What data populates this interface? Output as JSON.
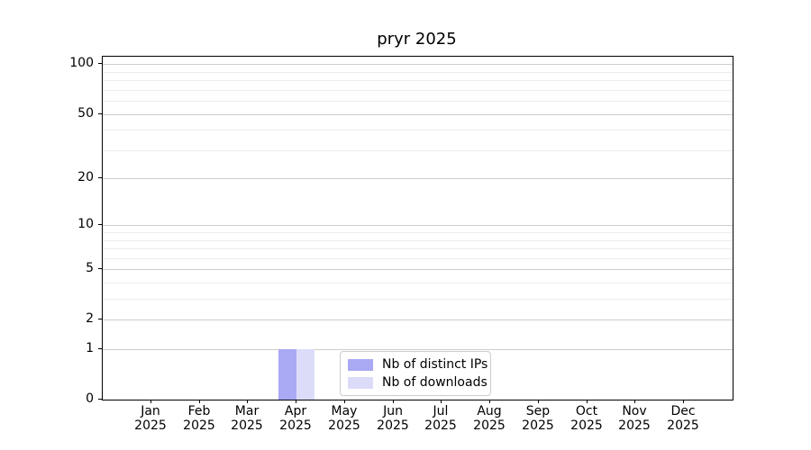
{
  "chart_data": {
    "type": "bar",
    "title": "pryr 2025",
    "categories": [
      "Jan",
      "Feb",
      "Mar",
      "Apr",
      "May",
      "Jun",
      "Jul",
      "Aug",
      "Sep",
      "Oct",
      "Nov",
      "Dec"
    ],
    "x_tick_year": "2025",
    "series": [
      {
        "name": "Nb of distinct IPs",
        "color": "#a9a9f4",
        "values": [
          0,
          0,
          0,
          1,
          0,
          0,
          0,
          0,
          0,
          0,
          0,
          0
        ]
      },
      {
        "name": "Nb of downloads",
        "color": "#dcdcf9",
        "values": [
          0,
          0,
          0,
          1,
          0,
          0,
          0,
          0,
          0,
          0,
          0,
          0
        ]
      }
    ],
    "yscale": "log1p",
    "ylim": [
      0,
      111
    ],
    "yticks": [
      0,
      1,
      2,
      5,
      10,
      20,
      50,
      100
    ],
    "yticks_minor": [
      3,
      4,
      6,
      7,
      8,
      9,
      30,
      40,
      60,
      70,
      80,
      90
    ],
    "grid": true,
    "legend_position": "lower center"
  }
}
